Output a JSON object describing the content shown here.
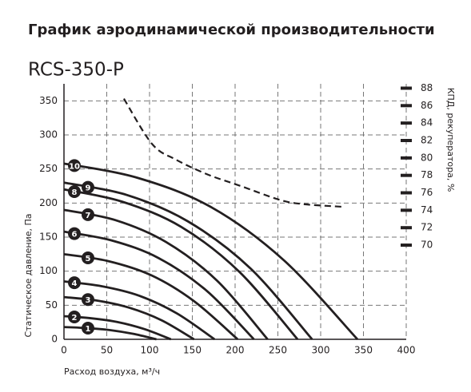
{
  "chart_data": {
    "type": "line",
    "title": "График аэродинамической производительности",
    "subtitle": "RCS-350-P",
    "xlabel": "Расход воздуха, м³/ч",
    "ylabel": "Статическое давление, Па",
    "y2label": "КПД, рекуператора, %",
    "xlim": [
      0,
      400
    ],
    "xticks": [
      0,
      50,
      100,
      150,
      200,
      250,
      300,
      350,
      400
    ],
    "ylim": [
      0,
      375
    ],
    "yticks": [
      0,
      50,
      100,
      150,
      200,
      250,
      300,
      350
    ],
    "y2lim": [
      59.2,
      88.5
    ],
    "y2ticks": [
      70,
      72,
      74,
      76,
      78,
      80,
      82,
      84,
      86,
      88
    ],
    "grid": true,
    "color": "#231f20",
    "series": [
      {
        "name": "1",
        "x": [
          0,
          27,
          54,
          81,
          108
        ],
        "values": [
          18,
          16.5,
          13.5,
          8,
          0
        ]
      },
      {
        "name": "2",
        "x": [
          0,
          31,
          62,
          94,
          125
        ],
        "values": [
          34,
          31,
          25.5,
          15,
          0
        ]
      },
      {
        "name": "3",
        "x": [
          0,
          38,
          76,
          114,
          152
        ],
        "values": [
          62,
          57,
          46.5,
          28,
          0
        ]
      },
      {
        "name": "4",
        "x": [
          0,
          44,
          88,
          132,
          176
        ],
        "values": [
          85,
          78,
          64,
          38,
          0
        ]
      },
      {
        "name": "5",
        "x": [
          0,
          51,
          102,
          152,
          203
        ],
        "values": [
          125,
          115,
          94,
          56,
          0
        ]
      },
      {
        "name": "6",
        "x": [
          0,
          56,
          111,
          167,
          222
        ],
        "values": [
          158,
          145,
          119,
          71,
          0
        ]
      },
      {
        "name": "7",
        "x": [
          0,
          60,
          119,
          179,
          238
        ],
        "values": [
          190,
          175,
          143,
          86,
          0
        ]
      },
      {
        "name": "8",
        "x": [
          0,
          68,
          137,
          205,
          273
        ],
        "values": [
          220,
          202,
          165,
          99,
          0
        ]
      },
      {
        "name": "9",
        "x": [
          0,
          73,
          145,
          218,
          290
        ],
        "values": [
          230,
          212,
          173,
          104,
          0
        ]
      },
      {
        "name": "10",
        "x": [
          0,
          86,
          172,
          257,
          343
        ],
        "values": [
          258,
          237,
          194,
          116,
          0
        ]
      },
      {
        "axis": "y2",
        "dashed": true,
        "x": [
          70,
          103,
          131,
          168,
          206,
          252,
          280,
          325
        ],
        "values": [
          86.8,
          81.6,
          79.8,
          78.1,
          76.8,
          75.2,
          74.7,
          74.4
        ]
      }
    ]
  }
}
